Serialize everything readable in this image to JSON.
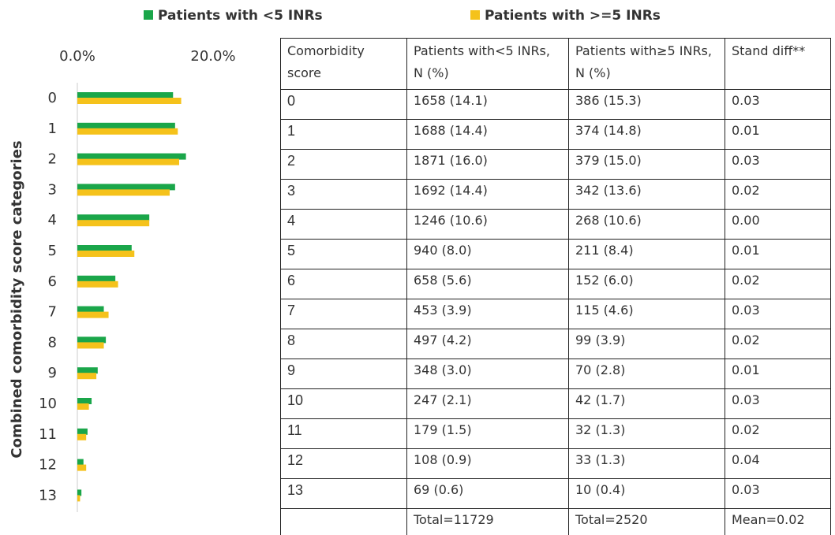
{
  "chart_data": {
    "type": "hbar",
    "y_axis_label": "Combined comorbidity  score categories",
    "categories": [
      "0",
      "1",
      "2",
      "3",
      "4",
      "5",
      "6",
      "7",
      "8",
      "9",
      "10",
      "11",
      "12",
      "13"
    ],
    "series": [
      {
        "name": "Patients with <5 INRs",
        "color": "#1aa64a",
        "values": [
          14.1,
          14.4,
          16.0,
          14.4,
          10.6,
          8.0,
          5.6,
          3.9,
          4.2,
          3.0,
          2.1,
          1.5,
          0.9,
          0.6
        ]
      },
      {
        "name": "Patients with >=5 INRs",
        "color": "#f5c21b",
        "values": [
          15.3,
          14.8,
          15.0,
          13.6,
          10.6,
          8.4,
          6.0,
          4.6,
          3.9,
          2.8,
          1.7,
          1.3,
          1.3,
          0.4
        ]
      }
    ],
    "xlim": [
      0,
      20
    ],
    "xticks": [
      {
        "value": 0,
        "label": "0.0%"
      },
      {
        "value": 20,
        "label": "20.0%"
      }
    ],
    "grid": false
  },
  "table": {
    "header": [
      "Comorbidity score",
      "Patients with<5 INRs, N (%)",
      "Patients with≥5 INRs, N (%)",
      "Stand diff**"
    ],
    "rows": [
      [
        "0",
        "1658 (14.1)",
        "386 (15.3)",
        "0.03"
      ],
      [
        "1",
        "1688 (14.4)",
        "374 (14.8)",
        "0.01"
      ],
      [
        "2",
        "1871 (16.0)",
        "379 (15.0)",
        "0.03"
      ],
      [
        "3",
        "1692 (14.4)",
        "342 (13.6)",
        "0.02"
      ],
      [
        "4",
        "1246 (10.6)",
        "268 (10.6)",
        "0.00"
      ],
      [
        "5",
        "940 (8.0)",
        "211 (8.4)",
        "0.01"
      ],
      [
        "6",
        "658 (5.6)",
        "152 (6.0)",
        "0.02"
      ],
      [
        "7",
        "453 (3.9)",
        "115 (4.6)",
        "0.03"
      ],
      [
        "8",
        "497 (4.2)",
        "99 (3.9)",
        "0.02"
      ],
      [
        "9",
        "348 (3.0)",
        "70 (2.8)",
        "0.01"
      ],
      [
        "10",
        "247 (2.1)",
        "42 (1.7)",
        "0.03"
      ],
      [
        "11",
        "179 (1.5)",
        "32 (1.3)",
        "0.02"
      ],
      [
        "12",
        "108 (0.9)",
        "33 (1.3)",
        "0.04"
      ],
      [
        "13",
        "69 (0.6)",
        "10 (0.4)",
        "0.03"
      ]
    ],
    "footer": [
      "Total=11729",
      "Total=2520",
      "Mean=0.02"
    ]
  }
}
